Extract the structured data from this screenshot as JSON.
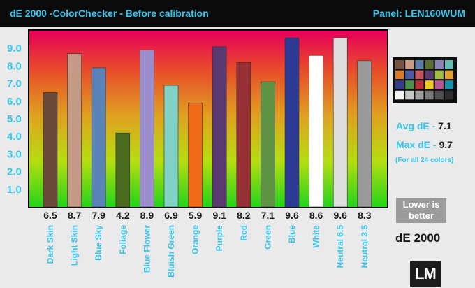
{
  "header": {
    "title": "dE 2000 -ColorChecker - Before calibration",
    "panel": "Panel: LEN160WUM"
  },
  "side": {
    "avg_label": "Avg dE - ",
    "avg_value": "7.1",
    "max_label": "Max dE - ",
    "max_value": "9.7",
    "note": "(For all 24 colors)",
    "lower_line1": "Lower is",
    "lower_line2": "better",
    "metric_label": "dE 2000",
    "logo": "LM"
  },
  "colors": {
    "accent": "#35c6ee",
    "header_bg": "#0b0b0b",
    "gradient": [
      "#e8005a",
      "#e84b2a",
      "#e0a020",
      "#b6de10",
      "#22d41a"
    ]
  },
  "swatch_colors": [
    "#7a5040",
    "#c99a82",
    "#5e7ea8",
    "#5a6d34",
    "#8a84b8",
    "#63bdb0",
    "#d87a26",
    "#4c5aa6",
    "#c45660",
    "#5c3c6c",
    "#a0bf3c",
    "#e0a030",
    "#343c8c",
    "#4a9048",
    "#b03234",
    "#eec820",
    "#b65494",
    "#1890a8",
    "#f4f4f4",
    "#c8c8c8",
    "#a0a0a0",
    "#787878",
    "#505050",
    "#2c2c2c"
  ],
  "chart_data": {
    "type": "bar",
    "categories": [
      "Dark Skin",
      "Light Skin",
      "Blue Sky",
      "Foliage",
      "Blue Flower",
      "Bluish Green",
      "Orange",
      "Purple",
      "Red",
      "Green",
      "Blue",
      "White",
      "Neutral 6.5",
      "Neutral 3.5"
    ],
    "values": [
      6.5,
      8.7,
      7.9,
      4.2,
      8.9,
      6.9,
      5.9,
      9.1,
      8.2,
      7.1,
      9.6,
      8.6,
      9.6,
      8.3
    ],
    "value_labels": [
      "6.5",
      "8.7",
      "7.9",
      "4.2",
      "8.9",
      "6.9",
      "5.9",
      "9.1",
      "8.2",
      "7.1",
      "9.6",
      "8.6",
      "9.6",
      "8.3"
    ],
    "bar_colors": [
      "#6b4a3c",
      "#c49a86",
      "#5a83b8",
      "#4a6a1e",
      "#9b8ccc",
      "#80d2c6",
      "#f06a18",
      "#5a3a70",
      "#963034",
      "#5e9444",
      "#2c3a94",
      "#ffffff",
      "#dddddd",
      "#9a9a9a"
    ],
    "yticks": [
      "1.0",
      "2.0",
      "3.0",
      "4.0",
      "5.0",
      "6.0",
      "7.0",
      "8.0",
      "9.0"
    ],
    "ylim": [
      0,
      10
    ],
    "grid": false,
    "legend": "none",
    "title": "dE 2000 -ColorChecker - Before calibration",
    "xlabel": "",
    "ylabel": ""
  }
}
